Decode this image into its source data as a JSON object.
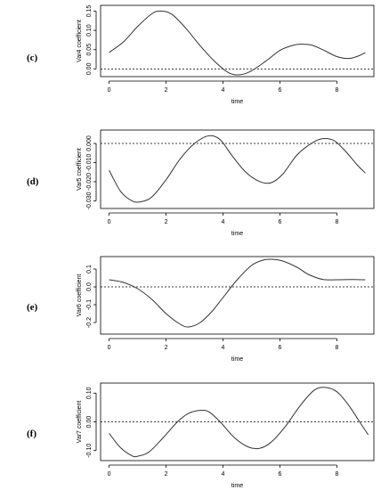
{
  "chart_data": [
    {
      "panel_label": "(c)",
      "type": "line",
      "xlabel": "time",
      "ylabel": "Var4 coefficient",
      "xlim": [
        -0.3,
        9.3
      ],
      "ylim": [
        -0.02,
        0.165
      ],
      "x_ticks": [
        0,
        2,
        4,
        6,
        8
      ],
      "x_tick_labels": [
        "0",
        "2",
        "4",
        "6",
        "8"
      ],
      "y_ticks": [
        0.0,
        0.05,
        0.1,
        0.15
      ],
      "y_tick_labels": [
        "0.00",
        "0.05",
        "0.10",
        "0.15"
      ],
      "reference_line": 0,
      "x": [
        0,
        0.5,
        1.0,
        1.5,
        1.8,
        2.2,
        2.7,
        3.2,
        3.7,
        4.2,
        4.6,
        5.0,
        5.5,
        6.0,
        6.4,
        6.7,
        7.1,
        7.5,
        8.0,
        8.4,
        8.7,
        9.0
      ],
      "values": [
        0.043,
        0.07,
        0.11,
        0.143,
        0.15,
        0.142,
        0.105,
        0.06,
        0.02,
        -0.01,
        -0.015,
        -0.005,
        0.02,
        0.048,
        0.06,
        0.064,
        0.062,
        0.05,
        0.032,
        0.027,
        0.032,
        0.042
      ]
    },
    {
      "panel_label": "(d)",
      "type": "line",
      "xlabel": "time",
      "ylabel": "Var5 coefficient",
      "xlim": [
        -0.3,
        9.3
      ],
      "ylim": [
        -0.034,
        0.007
      ],
      "x_ticks": [
        0,
        2,
        4,
        6,
        8
      ],
      "x_tick_labels": [
        "0",
        "2",
        "4",
        "6",
        "8"
      ],
      "y_ticks": [
        -0.03,
        -0.02,
        -0.01,
        0.0
      ],
      "y_tick_labels": [
        "-0.030",
        "-0.020",
        "-0.010",
        "0.000"
      ],
      "reference_line": 0,
      "x": [
        0,
        0.4,
        0.8,
        1.1,
        1.5,
        2.0,
        2.5,
        3.0,
        3.5,
        3.9,
        4.3,
        4.8,
        5.3,
        5.7,
        6.1,
        6.6,
        7.1,
        7.5,
        7.9,
        8.3,
        8.7,
        9.0
      ],
      "values": [
        -0.014,
        -0.025,
        -0.03,
        -0.0305,
        -0.028,
        -0.019,
        -0.008,
        0.0,
        0.004,
        0.002,
        -0.006,
        -0.015,
        -0.02,
        -0.0205,
        -0.016,
        -0.006,
        0.0,
        0.0025,
        0.0015,
        -0.004,
        -0.011,
        -0.0155
      ]
    },
    {
      "panel_label": "(e)",
      "type": "line",
      "xlabel": "time",
      "ylabel": "Var6 coefficient",
      "xlim": [
        -0.3,
        9.3
      ],
      "ylim": [
        -0.265,
        0.17
      ],
      "x_ticks": [
        0,
        2,
        4,
        6,
        8
      ],
      "x_tick_labels": [
        "0",
        "2",
        "4",
        "6",
        "8"
      ],
      "y_ticks": [
        -0.2,
        -0.1,
        0.0,
        0.1
      ],
      "y_tick_labels": [
        "-0.2",
        "-0.1",
        "0.0",
        "0.1"
      ],
      "reference_line": 0,
      "x": [
        0,
        0.5,
        1.0,
        1.5,
        2.0,
        2.5,
        2.8,
        3.2,
        3.6,
        4.0,
        4.5,
        5.0,
        5.4,
        5.7,
        6.1,
        6.6,
        7.0,
        7.5,
        8.0,
        8.5,
        9.0
      ],
      "values": [
        0.04,
        0.025,
        -0.01,
        -0.07,
        -0.15,
        -0.21,
        -0.225,
        -0.2,
        -0.14,
        -0.06,
        0.04,
        0.12,
        0.15,
        0.155,
        0.145,
        0.11,
        0.07,
        0.042,
        0.04,
        0.041,
        0.04
      ]
    },
    {
      "panel_label": "(f)",
      "type": "line",
      "xlabel": "time",
      "ylabel": "Var7 coefficient",
      "xlim": [
        -0.3,
        9.3
      ],
      "ylim": [
        -0.135,
        0.135
      ],
      "x_ticks": [
        0,
        2,
        4,
        6,
        8
      ],
      "x_tick_labels": [
        "0",
        "2",
        "4",
        "6",
        "8"
      ],
      "y_ticks": [
        -0.1,
        0.0,
        0.1
      ],
      "y_tick_labels": [
        "-0.10",
        "0.00",
        "0.10"
      ],
      "reference_line": 0,
      "x": [
        0,
        0.4,
        0.8,
        1.0,
        1.4,
        1.9,
        2.4,
        2.8,
        3.2,
        3.5,
        3.9,
        4.4,
        4.9,
        5.3,
        5.7,
        6.2,
        6.7,
        7.2,
        7.6,
        8.0,
        8.4,
        8.8,
        9.1
      ],
      "values": [
        -0.04,
        -0.09,
        -0.118,
        -0.12,
        -0.105,
        -0.055,
        0.0,
        0.03,
        0.04,
        0.035,
        0.0,
        -0.055,
        -0.088,
        -0.092,
        -0.07,
        -0.015,
        0.055,
        0.11,
        0.12,
        0.105,
        0.06,
        0.0,
        -0.045
      ]
    }
  ],
  "colors": {
    "line": "#333333",
    "axis": "#000000",
    "reference_line": "#000000"
  }
}
